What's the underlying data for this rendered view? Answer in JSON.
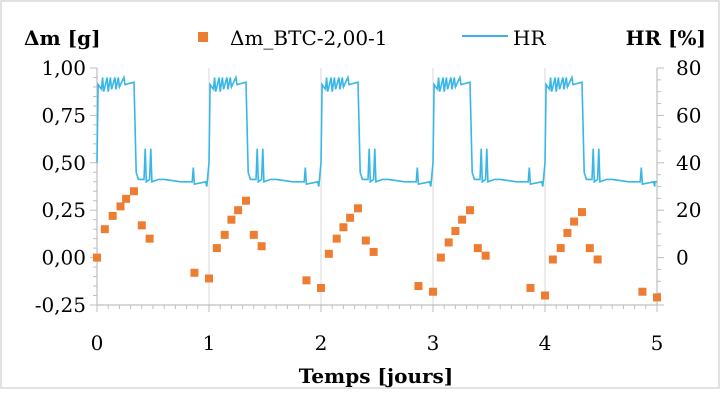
{
  "chart_data": {
    "type": "scatter+line",
    "xlabel": "Temps [jours]",
    "ylabel_left": "Δm [g]",
    "ylabel_right": "HR [%]",
    "xlim": [
      0,
      5
    ],
    "ylim_left": [
      -0.25,
      1.0
    ],
    "ylim_right": [
      -20,
      80
    ],
    "x_ticks": [
      "0",
      "1",
      "2",
      "3",
      "4",
      "5"
    ],
    "y_left_ticks": [
      "1,00",
      "0,75",
      "0,50",
      "0,25",
      "0,00",
      "-0,25"
    ],
    "y_left_values": [
      1.0,
      0.75,
      0.5,
      0.25,
      0.0,
      -0.25
    ],
    "y_right_ticks": [
      "80",
      "60",
      "40",
      "20",
      "0"
    ],
    "y_right_values": [
      80,
      60,
      40,
      20,
      0
    ],
    "grid": "vertical",
    "legend": [
      {
        "label": "Δm_BTC-2,00-1",
        "marker": "square",
        "color": "#ED7D31"
      },
      {
        "label": "HR",
        "marker": "line",
        "color": "#38B6E8"
      }
    ],
    "series": [
      {
        "name": "Δm_BTC-2,00-1",
        "axis": "left",
        "color": "#ED7D31",
        "points": [
          [
            0.0,
            0.0
          ],
          [
            0.07,
            0.15
          ],
          [
            0.14,
            0.22
          ],
          [
            0.21,
            0.27
          ],
          [
            0.26,
            0.31
          ],
          [
            0.33,
            0.35
          ],
          [
            0.4,
            0.17
          ],
          [
            0.47,
            0.1
          ],
          [
            0.87,
            -0.08
          ],
          [
            1.0,
            -0.11
          ],
          [
            1.07,
            0.05
          ],
          [
            1.14,
            0.12
          ],
          [
            1.2,
            0.2
          ],
          [
            1.26,
            0.25
          ],
          [
            1.33,
            0.3
          ],
          [
            1.4,
            0.12
          ],
          [
            1.47,
            0.06
          ],
          [
            1.87,
            -0.12
          ],
          [
            2.0,
            -0.16
          ],
          [
            2.07,
            0.02
          ],
          [
            2.14,
            0.1
          ],
          [
            2.2,
            0.16
          ],
          [
            2.26,
            0.21
          ],
          [
            2.33,
            0.26
          ],
          [
            2.4,
            0.09
          ],
          [
            2.47,
            0.03
          ],
          [
            2.87,
            -0.15
          ],
          [
            3.0,
            -0.18
          ],
          [
            3.07,
            0.0
          ],
          [
            3.14,
            0.08
          ],
          [
            3.2,
            0.14
          ],
          [
            3.26,
            0.2
          ],
          [
            3.33,
            0.25
          ],
          [
            3.4,
            0.05
          ],
          [
            3.47,
            0.01
          ],
          [
            3.87,
            -0.16
          ],
          [
            4.0,
            -0.2
          ],
          [
            4.07,
            -0.01
          ],
          [
            4.14,
            0.05
          ],
          [
            4.2,
            0.13
          ],
          [
            4.26,
            0.19
          ],
          [
            4.33,
            0.24
          ],
          [
            4.4,
            0.05
          ],
          [
            4.47,
            -0.01
          ],
          [
            4.87,
            -0.18
          ],
          [
            5.0,
            -0.21
          ]
        ]
      },
      {
        "name": "HR",
        "axis": "right",
        "color": "#38B6E8",
        "pattern": "five cycles of ~0.33 day high-humidity phase (~72–76 % with spikes to ~76 %) followed by a low-humidity phase (~33 % with short spikes to ~45 % and ~38 %) until the next day",
        "cycle_points_template": [
          [
            0.0,
            40
          ],
          [
            0.01,
            73
          ],
          [
            0.04,
            71
          ],
          [
            0.05,
            76
          ],
          [
            0.06,
            70
          ],
          [
            0.09,
            76
          ],
          [
            0.1,
            70
          ],
          [
            0.12,
            76
          ],
          [
            0.13,
            71
          ],
          [
            0.16,
            76
          ],
          [
            0.17,
            71
          ],
          [
            0.19,
            76
          ],
          [
            0.2,
            72
          ],
          [
            0.24,
            76
          ],
          [
            0.25,
            73
          ],
          [
            0.33,
            74
          ],
          [
            0.35,
            36
          ],
          [
            0.37,
            33
          ],
          [
            0.42,
            33
          ],
          [
            0.43,
            46
          ],
          [
            0.44,
            32
          ],
          [
            0.47,
            33
          ],
          [
            0.48,
            46
          ],
          [
            0.49,
            32
          ],
          [
            0.55,
            33
          ],
          [
            0.6,
            33
          ],
          [
            0.75,
            32
          ],
          [
            0.85,
            32
          ],
          [
            0.86,
            38
          ],
          [
            0.87,
            31
          ],
          [
            0.97,
            32
          ],
          [
            0.98,
            30
          ]
        ],
        "cycles_start": [
          0,
          1,
          2,
          3,
          4
        ],
        "tail_points": [
          [
            4.98,
            32
          ],
          [
            5.0,
            32
          ]
        ]
      }
    ]
  }
}
